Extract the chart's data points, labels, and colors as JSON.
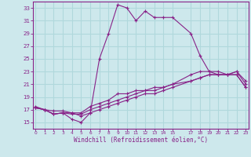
{
  "xlabel": "Windchill (Refroidissement éolien,°C)",
  "bg_color": "#cde8ec",
  "grid_color": "#b0d8dc",
  "line_color": "#882288",
  "spine_color": "#882288",
  "ylim": [
    14,
    34
  ],
  "xlim": [
    -0.3,
    23.3
  ],
  "y_ticks": [
    15,
    17,
    19,
    21,
    23,
    25,
    27,
    29,
    31,
    33
  ],
  "x_tick_positions": [
    0,
    1,
    2,
    3,
    4,
    5,
    6,
    7,
    8,
    9,
    10,
    11,
    12,
    13,
    14,
    15,
    17,
    18,
    19,
    20,
    21,
    22,
    23
  ],
  "x_tick_labels": [
    "0",
    "1",
    "2",
    "3",
    "4",
    "5",
    "6",
    "7",
    "8",
    "9",
    "10",
    "11",
    "12",
    "13",
    "14",
    "15",
    "17",
    "18",
    "19",
    "20",
    "21",
    "22",
    "23"
  ],
  "series1_x": [
    0,
    1,
    2,
    3,
    4,
    5,
    6,
    7,
    8,
    9,
    10,
    11,
    12,
    13,
    14,
    15,
    17,
    18,
    19,
    20,
    21,
    22,
    23
  ],
  "series1_y": [
    17.5,
    17.0,
    16.3,
    16.5,
    15.5,
    15.0,
    16.5,
    25.0,
    29.0,
    33.5,
    33.0,
    31.0,
    32.5,
    31.5,
    31.5,
    31.5,
    29.0,
    25.5,
    23.0,
    23.0,
    22.5,
    23.0,
    21.0
  ],
  "series2_x": [
    0,
    1,
    2,
    3,
    4,
    5,
    6,
    7,
    8,
    9,
    10,
    11,
    12,
    13,
    14,
    15,
    17,
    18,
    19,
    20,
    21,
    22,
    23
  ],
  "series2_y": [
    17.3,
    17.0,
    16.3,
    16.5,
    16.5,
    16.5,
    17.5,
    18.0,
    18.5,
    19.5,
    19.5,
    20.0,
    20.0,
    20.5,
    20.5,
    21.0,
    22.5,
    23.0,
    23.0,
    22.5,
    22.5,
    23.0,
    21.5
  ],
  "series3_x": [
    0,
    1,
    2,
    3,
    4,
    5,
    6,
    7,
    8,
    9,
    10,
    11,
    12,
    13,
    14,
    15,
    17,
    18,
    19,
    20,
    21,
    22,
    23
  ],
  "series3_y": [
    17.3,
    17.0,
    16.3,
    16.5,
    16.3,
    16.3,
    17.0,
    17.5,
    18.0,
    18.5,
    19.0,
    19.5,
    20.0,
    20.0,
    20.5,
    21.0,
    21.5,
    22.0,
    22.5,
    22.5,
    22.5,
    22.5,
    20.5
  ],
  "series4_x": [
    0,
    1,
    2,
    3,
    4,
    5,
    6,
    7,
    8,
    9,
    10,
    11,
    12,
    13,
    14,
    15,
    17,
    18,
    19,
    20,
    21,
    22,
    23
  ],
  "series4_y": [
    17.3,
    17.0,
    16.8,
    16.8,
    16.5,
    16.0,
    16.5,
    17.0,
    17.5,
    18.0,
    18.5,
    19.0,
    19.5,
    19.5,
    20.0,
    20.5,
    21.5,
    22.0,
    22.5,
    22.5,
    22.5,
    22.5,
    20.5
  ]
}
